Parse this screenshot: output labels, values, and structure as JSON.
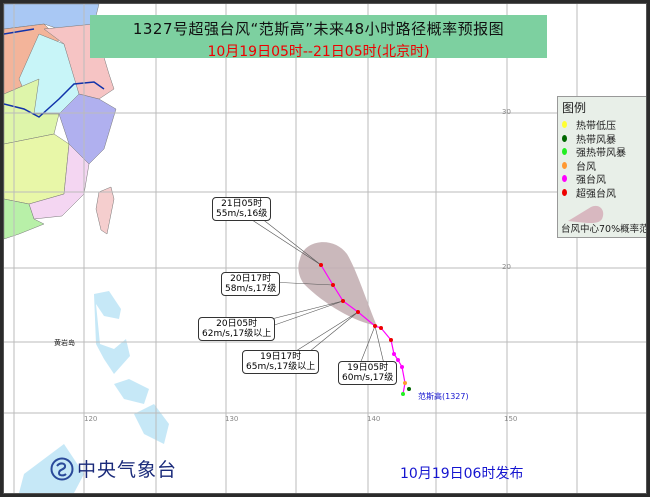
{
  "header": {
    "title": "1327号超强台风“范斯高”未来48小时路径概率预报图",
    "subtitle": "10月19日05时--21日05时(北京时)"
  },
  "legend": {
    "title": "图例",
    "items": [
      {
        "label": "热带低压",
        "color": "#ffff33"
      },
      {
        "label": "热带风暴",
        "color": "#006600"
      },
      {
        "label": "强热带风暴",
        "color": "#22ee22"
      },
      {
        "label": "台风",
        "color": "#ff9933"
      },
      {
        "label": "强台风",
        "color": "#ff00ff"
      },
      {
        "label": "超强台风",
        "color": "#ee0000"
      }
    ],
    "cone_label": "台风中心70%概率范"
  },
  "forecast_points": [
    {
      "time": "21日05时",
      "intensity": "55m/s,16级"
    },
    {
      "time": "20日17时",
      "intensity": "58m/s,17级"
    },
    {
      "time": "20日05时",
      "intensity": "62m/s,17级以上"
    },
    {
      "time": "19日17时",
      "intensity": "65m/s,17级以上"
    },
    {
      "time": "19日05时",
      "intensity": "60m/s,17级"
    }
  ],
  "storm_label": "范斯高(1327)",
  "place_label": "黄岩岛",
  "axes": {
    "lon": [
      "120",
      "130",
      "140",
      "150"
    ],
    "lat": [
      "30",
      "20"
    ]
  },
  "footer": {
    "agency": "中央气象台",
    "issued": "10月19日06时发布"
  },
  "colors": {
    "title_bg": "#7dd0a0",
    "track": "#ff00ff",
    "cone": "#c4b0b4",
    "sea": "#c6e8f7"
  }
}
